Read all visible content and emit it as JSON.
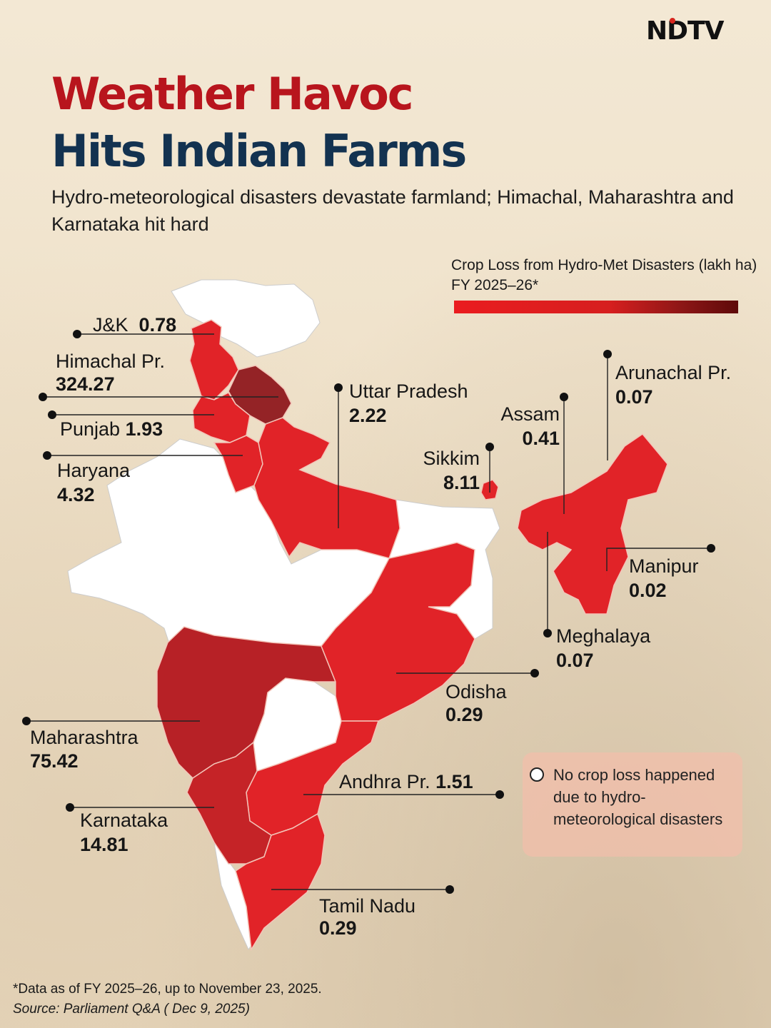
{
  "brand": "NDTV",
  "headline": {
    "line1": "Weather Havoc",
    "line2": "Hits Indian Farms",
    "subtitle": "Hydro-meteorological disasters devastate farmland; Himachal, Maharashtra and Karnataka hit hard"
  },
  "legend": {
    "title": "Crop Loss from Hydro-Met Disasters (lakh ha) FY 2025–26*",
    "colors": [
      "#ea1c1f",
      "#d61f1f",
      "#8d1616",
      "#5e0a0a"
    ]
  },
  "states": [
    {
      "name": "J&K",
      "value": "0.78",
      "color": "#e12328"
    },
    {
      "name": "Himachal Pr.",
      "value": "324.27",
      "color": "#942326"
    },
    {
      "name": "Punjab",
      "value": "1.93",
      "color": "#e12328"
    },
    {
      "name": "Haryana",
      "value": "4.32",
      "color": "#e12328"
    },
    {
      "name": "Uttar Pradesh",
      "value": "2.22",
      "color": "#e12328"
    },
    {
      "name": "Sikkim",
      "value": "8.11",
      "color": "#e12328"
    },
    {
      "name": "Assam",
      "value": "0.41",
      "color": "#e12328"
    },
    {
      "name": "Arunachal Pr.",
      "value": "0.07",
      "color": "#e12328"
    },
    {
      "name": "Manipur",
      "value": "0.02",
      "color": "#e12328"
    },
    {
      "name": "Meghalaya",
      "value": "0.07",
      "color": "#e12328"
    },
    {
      "name": "Odisha",
      "value": "0.29",
      "color": "#e12328"
    },
    {
      "name": "Andhra Pr.",
      "value": "1.51",
      "color": "#e12328"
    },
    {
      "name": "Maharashtra",
      "value": "75.42",
      "color": "#b72126"
    },
    {
      "name": "Karnataka",
      "value": "14.81",
      "color": "#c52327"
    },
    {
      "name": "Tamil Nadu",
      "value": "0.29",
      "color": "#e12328"
    }
  ],
  "no_loss_color": "#ffffff",
  "note": "No crop loss happened due to hydro-meteorological disasters",
  "footnote": "*Data as of FY 2025–26, up to November 23, 2025.",
  "source": "Source: Parliament Q&A ( Dec 9, 2025)"
}
